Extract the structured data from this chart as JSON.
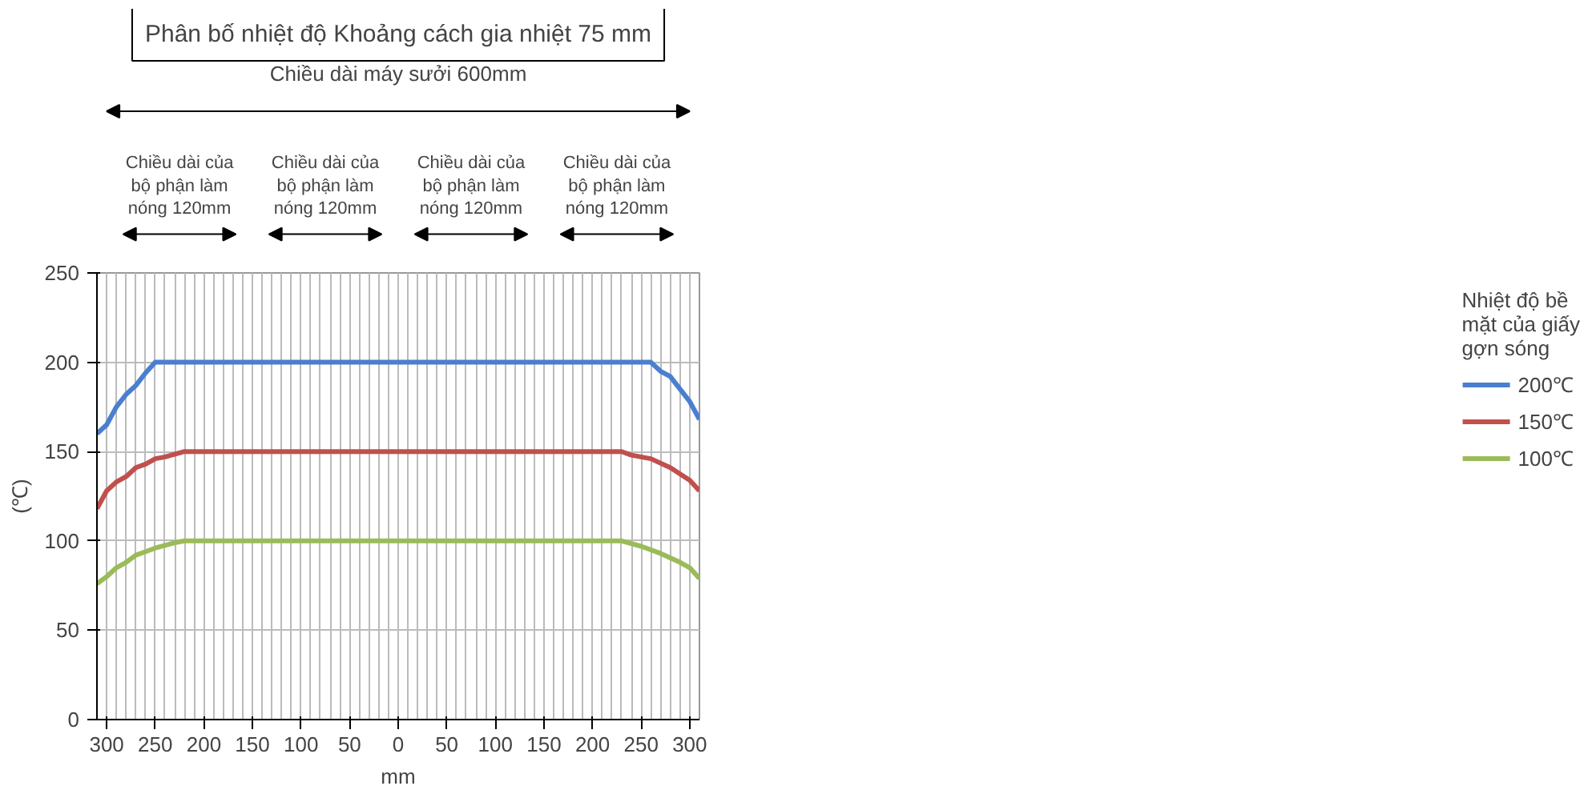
{
  "chart_data": {
    "type": "line",
    "title": "Phân bố nhiệt độ Khoảng cách gia nhiệt 75 mm",
    "ylabel": "(℃)",
    "xlabel": "mm",
    "legend_title": "Nhiệt độ bề mặt của giấy gợn sóng",
    "legend": "right",
    "grid": true,
    "marker": "none",
    "line_style": "solid",
    "xlim": [
      -310,
      310
    ],
    "ylim": [
      0,
      250
    ],
    "yticks": [
      0,
      50,
      100,
      150,
      200,
      250
    ],
    "xticks": [
      {
        "value": -300,
        "label": "300"
      },
      {
        "value": -250,
        "label": "250"
      },
      {
        "value": -200,
        "label": "200"
      },
      {
        "value": -150,
        "label": "150"
      },
      {
        "value": -100,
        "label": "100"
      },
      {
        "value": -50,
        "label": "50"
      },
      0,
      50,
      100,
      150,
      200,
      250,
      300
    ],
    "annotations": [
      "Chiều dài máy sưởi 600mm",
      "Chiều dài của bộ phận làm nóng 120mm",
      "Chiều dài của bộ phận làm nóng 120mm",
      "Chiều dài của bộ phận làm nóng 120mm",
      "Chiều dài của bộ phận làm nóng 120mm"
    ],
    "series": [
      {
        "name": "200℃",
        "color": "#4a7fd0",
        "x": [
          -310,
          -300,
          -290,
          -280,
          -270,
          -260,
          -250,
          260,
          270,
          280,
          290,
          300,
          310
        ],
        "values": [
          160,
          165,
          175,
          182,
          187,
          194,
          200,
          200,
          195,
          192,
          185,
          178,
          168
        ]
      },
      {
        "name": "150℃",
        "color": "#c0504d",
        "x": [
          -310,
          -300,
          -290,
          -280,
          -270,
          -260,
          -250,
          -240,
          -220,
          230,
          240,
          260,
          280,
          300,
          310
        ],
        "values": [
          118,
          128,
          133,
          136,
          141,
          143,
          146,
          147,
          150,
          150,
          148,
          146,
          141,
          134,
          128
        ]
      },
      {
        "name": "100℃",
        "color": "#9bbb59",
        "x": [
          -310,
          -300,
          -290,
          -280,
          -270,
          -260,
          -250,
          -230,
          -220,
          230,
          250,
          270,
          290,
          300,
          310
        ],
        "values": [
          76,
          80,
          85,
          88,
          92,
          94,
          96,
          99,
          100,
          100,
          97,
          93,
          88,
          85,
          79
        ]
      }
    ]
  }
}
